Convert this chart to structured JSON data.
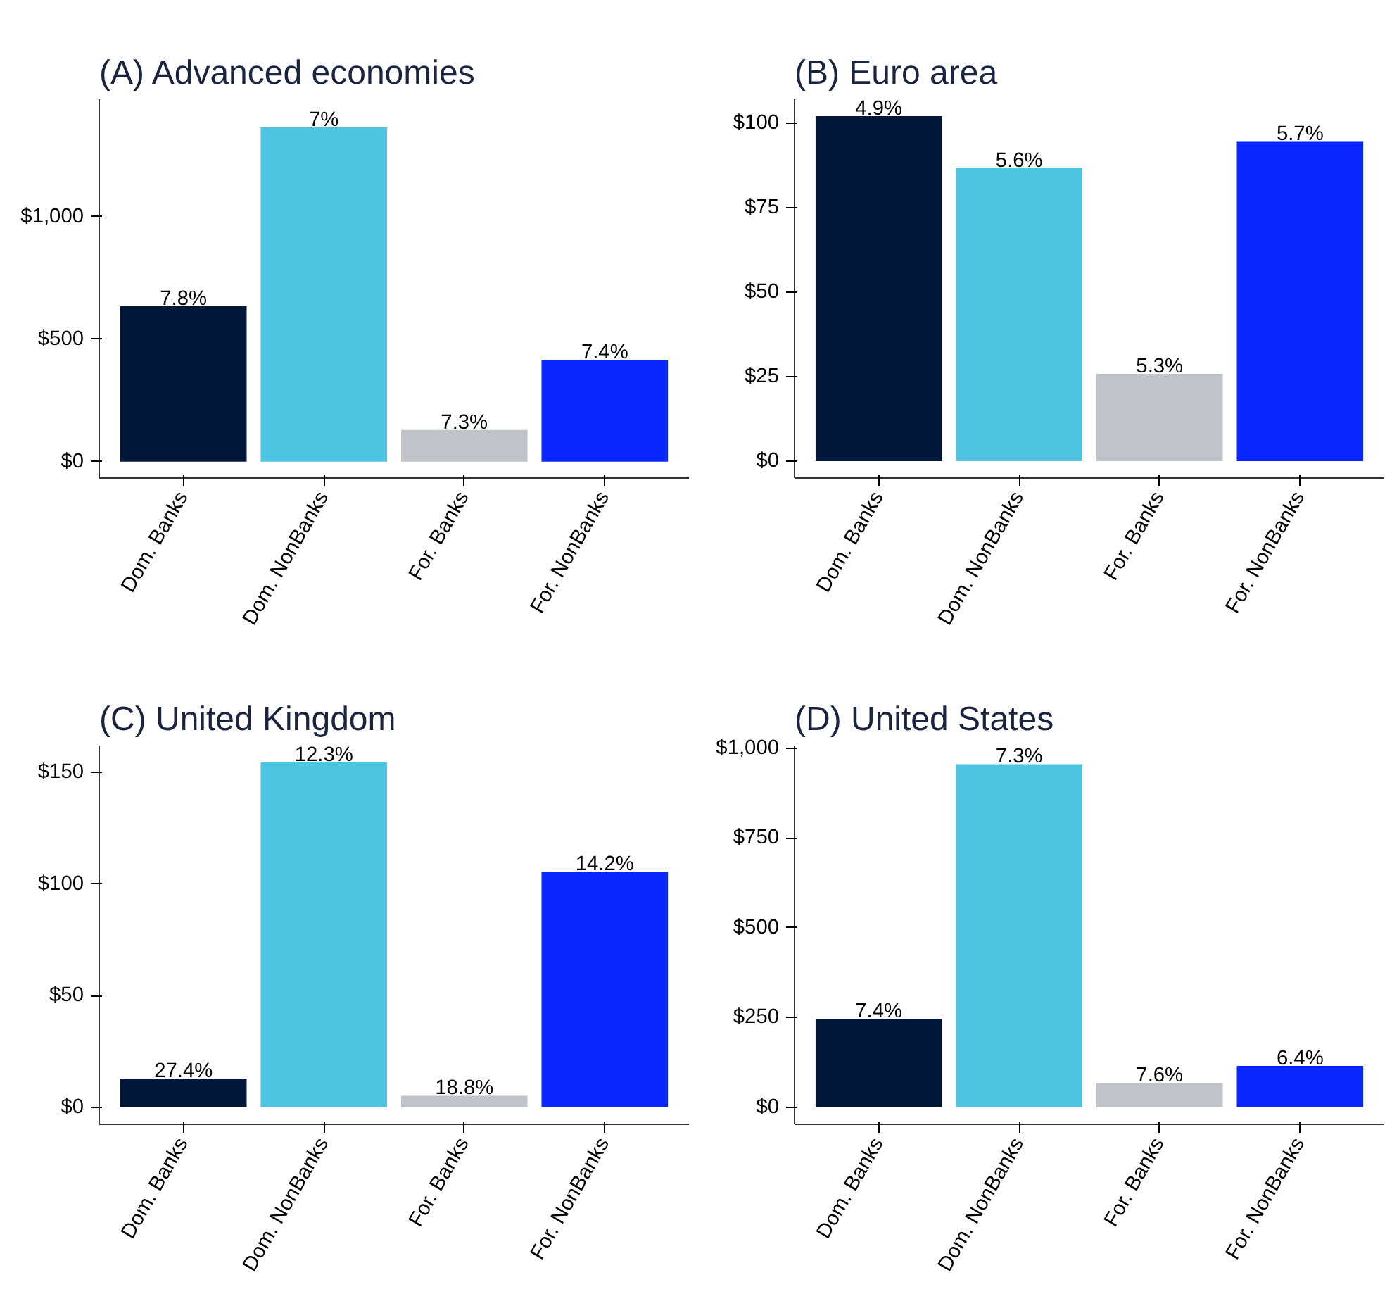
{
  "chart_data": [
    {
      "type": "bar",
      "title": "(A) Advanced economies",
      "categories": [
        "Dom. Banks",
        "Dom. NonBanks",
        "For. Banks",
        "For. NonBanks"
      ],
      "values": [
        635,
        1365,
        129,
        416
      ],
      "colors": [
        "#02183b",
        "#4fc3e2",
        "#c0c3c9",
        "#0a26ff"
      ],
      "annotations": [
        {
          "text": "7.8%",
          "x": "Dom. Banks",
          "y": 635
        },
        {
          "text": "7%",
          "x": "Dom. NonBanks",
          "y": 1365
        },
        {
          "text": "7.3%",
          "x": "For. Banks",
          "y": 129
        },
        {
          "text": "7.4%",
          "x": "For. NonBanks",
          "y": 416
        }
      ],
      "ylim": [
        -67,
        1480
      ],
      "yticks": [
        {
          "value": 0,
          "label": "$0"
        },
        {
          "value": 500,
          "label": "$500"
        },
        {
          "value": 1000,
          "label": "$1,000"
        }
      ],
      "grid": false
    },
    {
      "type": "bar",
      "title": "(B) Euro area",
      "categories": [
        "Dom. Banks",
        "Dom. NonBanks",
        "For. Banks",
        "For. NonBanks"
      ],
      "values": [
        102,
        86.6,
        25.8,
        94.6
      ],
      "colors": [
        "#02183b",
        "#4fc3e2",
        "#c0c3c9",
        "#0a26ff"
      ],
      "annotations": [
        {
          "text": "4.9%",
          "x": "Dom. Banks",
          "y": 102
        },
        {
          "text": "5.6%",
          "x": "Dom. NonBanks",
          "y": 86.6
        },
        {
          "text": "5.3%",
          "x": "For. Banks",
          "y": 25.8
        },
        {
          "text": "5.7%",
          "x": "For. NonBanks",
          "y": 94.6
        }
      ],
      "ylim": [
        -5,
        107
      ],
      "yticks": [
        {
          "value": 0,
          "label": "$0"
        },
        {
          "value": 25,
          "label": "$25"
        },
        {
          "value": 50,
          "label": "$50"
        },
        {
          "value": 75,
          "label": "$75"
        },
        {
          "value": 100,
          "label": "$100"
        }
      ],
      "grid": false
    },
    {
      "type": "bar",
      "title": "(C) United Kingdom",
      "categories": [
        "Dom. Banks",
        "Dom. NonBanks",
        "For. Banks",
        "For. NonBanks"
      ],
      "values": [
        12.8,
        154.5,
        5.1,
        105.4
      ],
      "colors": [
        "#02183b",
        "#4fc3e2",
        "#c0c3c9",
        "#0a26ff"
      ],
      "annotations": [
        {
          "text": "27.4%",
          "x": "Dom. Banks",
          "y": 12.8
        },
        {
          "text": "12.3%",
          "x": "Dom. NonBanks",
          "y": 154.5
        },
        {
          "text": "18.8%",
          "x": "For. Banks",
          "y": 5.1
        },
        {
          "text": "14.2%",
          "x": "For. NonBanks",
          "y": 105.4
        }
      ],
      "ylim": [
        -7.7,
        162
      ],
      "yticks": [
        {
          "value": 0,
          "label": "$0"
        },
        {
          "value": 50,
          "label": "$50"
        },
        {
          "value": 100,
          "label": "$100"
        },
        {
          "value": 150,
          "label": "$150"
        }
      ],
      "grid": false
    },
    {
      "type": "bar",
      "title": "(D) United States",
      "categories": [
        "Dom. Banks",
        "Dom. NonBanks",
        "For. Banks",
        "For. NonBanks"
      ],
      "values": [
        246,
        956,
        67,
        115
      ],
      "colors": [
        "#02183b",
        "#4fc3e2",
        "#c0c3c9",
        "#0a26ff"
      ],
      "annotations": [
        {
          "text": "7.4%",
          "x": "Dom. Banks",
          "y": 246
        },
        {
          "text": "7.3%",
          "x": "Dom. NonBanks",
          "y": 956
        },
        {
          "text": "7.6%",
          "x": "For. Banks",
          "y": 67
        },
        {
          "text": "6.4%",
          "x": "For. NonBanks",
          "y": 115
        }
      ],
      "ylim": [
        -48,
        1008
      ],
      "yticks": [
        {
          "value": 0,
          "label": "$0"
        },
        {
          "value": 250,
          "label": "$250"
        },
        {
          "value": 500,
          "label": "$500"
        },
        {
          "value": 750,
          "label": "$750"
        },
        {
          "value": 1000,
          "label": "$1,000"
        }
      ],
      "grid": false
    }
  ]
}
